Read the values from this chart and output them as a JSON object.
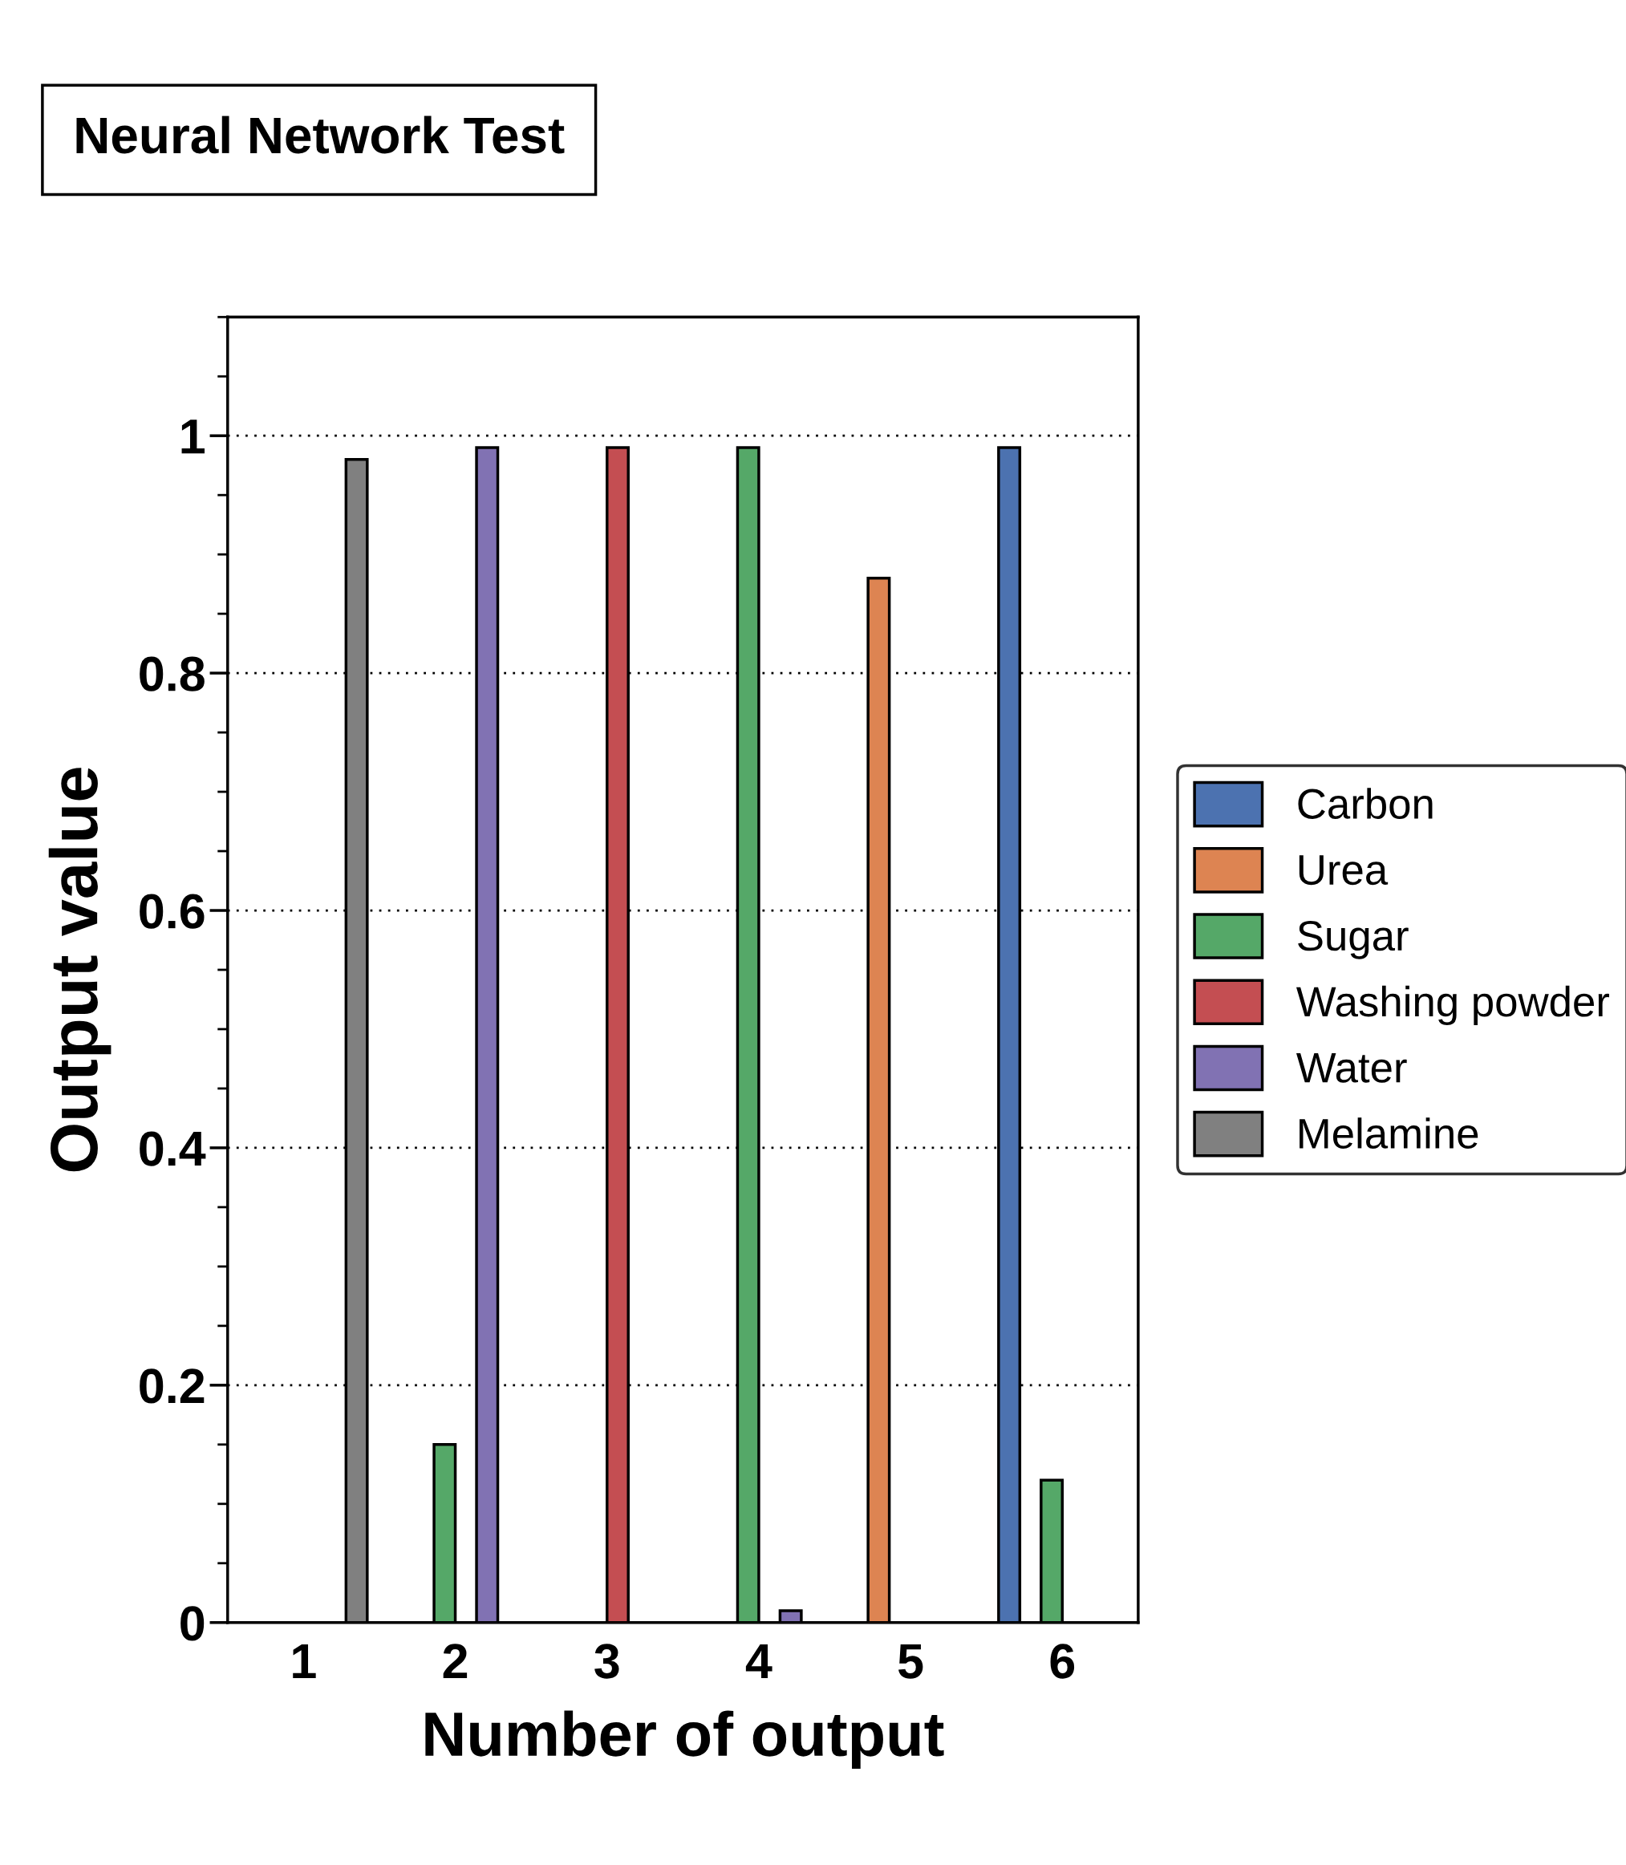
{
  "chart_data": {
    "type": "bar",
    "title": "Neural Network Test",
    "xlabel": "Number of output",
    "ylabel": "Output value",
    "categories": [
      "1",
      "2",
      "3",
      "4",
      "5",
      "6"
    ],
    "series": [
      {
        "name": "Carbon",
        "color": "#4c72b0",
        "values": [
          0,
          0,
          0,
          0,
          0,
          0.99
        ]
      },
      {
        "name": "Urea",
        "color": "#dd8452",
        "values": [
          0,
          0,
          0,
          0,
          0.88,
          0
        ]
      },
      {
        "name": "Sugar",
        "color": "#55a868",
        "values": [
          0,
          0.15,
          0,
          0.99,
          0,
          0.12
        ]
      },
      {
        "name": "Washing powder",
        "color": "#c44e52",
        "values": [
          0,
          0,
          0.99,
          0,
          0,
          0
        ]
      },
      {
        "name": "Water",
        "color": "#8172b3",
        "values": [
          0,
          0.99,
          0,
          0.01,
          0,
          0
        ]
      },
      {
        "name": "Melamine",
        "color": "#808080",
        "values": [
          0.98,
          0,
          0,
          0,
          0,
          0
        ]
      }
    ],
    "ylim": [
      0,
      1.1
    ],
    "yticks": [
      0,
      0.2,
      0.4,
      0.6,
      0.8,
      1
    ],
    "grid": "y",
    "legend": "right"
  }
}
